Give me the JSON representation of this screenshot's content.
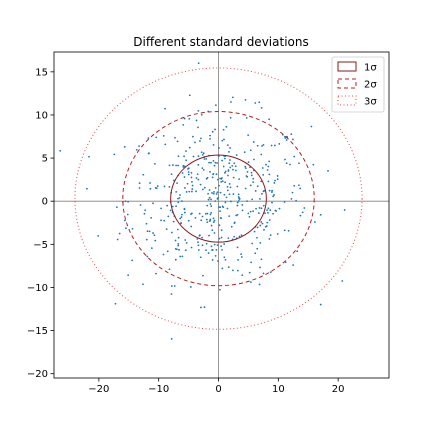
{
  "chart_data": {
    "type": "scatter",
    "title": "Different standard deviations",
    "xlabel": "",
    "ylabel": "",
    "xlim": [
      -27.5,
      28.5
    ],
    "ylim": [
      -20.5,
      17.3
    ],
    "xticks": [
      -20,
      -10,
      0,
      10,
      20
    ],
    "yticks": [
      -20,
      -15,
      -10,
      -5,
      0,
      5,
      10,
      15
    ],
    "center": [
      0,
      0.3
    ],
    "ellipses": [
      {
        "label": "1σ",
        "width_x": 16.0,
        "height_y": 10.1,
        "linestyle": "solid",
        "color": "#8b1a1a"
      },
      {
        "label": "2σ",
        "width_x": 32.0,
        "height_y": 20.2,
        "linestyle": "dashed",
        "color": "#b22222"
      },
      {
        "label": "3σ",
        "width_x": 48.0,
        "height_y": 30.3,
        "linestyle": "dotted",
        "color": "#e34a4a"
      }
    ],
    "point_color": "#1f77b4",
    "sample_count": 500,
    "grid": false,
    "legend": "top-right",
    "crosshair": "x=0 and y=0 lines in gray"
  }
}
